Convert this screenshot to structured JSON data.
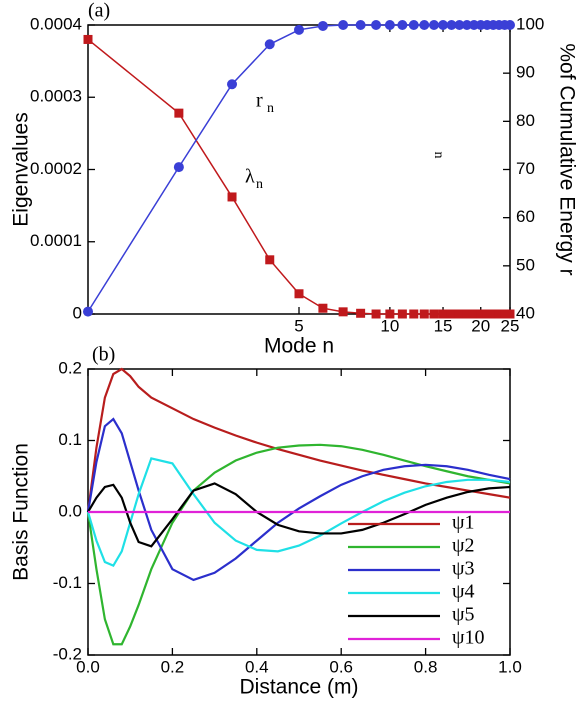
{
  "chart_data": [
    {
      "type": "line",
      "annotations": [
        {
          "text": "(a)"
        },
        {
          "text": "r",
          "sub": "n"
        },
        {
          "text": "λ",
          "sub": "n"
        }
      ],
      "xlabel": "Mode n",
      "ylabel": "Eigenvalues",
      "y2label": "%of Cumulative Energy r",
      "y2label_sub": "n",
      "xlog": true,
      "x": [
        1,
        2,
        3,
        4,
        5,
        6,
        7,
        8,
        9,
        10,
        11,
        12,
        13,
        14,
        15,
        16,
        17,
        18,
        19,
        20,
        21,
        22,
        23,
        24,
        25
      ],
      "xlim": [
        1,
        25
      ],
      "xticks": [
        5,
        10,
        15,
        20,
        25
      ],
      "ylim": [
        0,
        0.0004
      ],
      "yticks": [
        0,
        0.0001,
        0.0002,
        0.0003,
        0.0004
      ],
      "y2lim": [
        40,
        100
      ],
      "y2ticks": [
        40,
        50,
        60,
        70,
        80,
        90,
        100
      ],
      "series": [
        {
          "color": "#c0191c",
          "marker": "square",
          "values": [
            0.00038,
            0.000278,
            0.000162,
            7.5e-05,
            2.8e-05,
            8e-06,
            3e-06,
            1e-06,
            0,
            0,
            0,
            0,
            0,
            0,
            0,
            0,
            0,
            0,
            0,
            0,
            0,
            0,
            0,
            0,
            0
          ]
        },
        {
          "color": "#3a3fd6",
          "marker": "circle",
          "axis": "y2",
          "values": [
            40.5,
            70.5,
            87.7,
            96,
            99,
            99.8,
            100,
            100,
            100,
            100,
            100,
            100,
            100,
            100,
            100,
            100,
            100,
            100,
            100,
            100,
            100,
            100,
            100,
            100,
            100
          ]
        }
      ]
    },
    {
      "type": "line",
      "annotations": [
        {
          "text": "(b)"
        }
      ],
      "xlabel": "Distance (m)",
      "ylabel": "Basis Function",
      "x": [
        0,
        0.02,
        0.04,
        0.06,
        0.08,
        0.1,
        0.12,
        0.15,
        0.2,
        0.25,
        0.3,
        0.35,
        0.4,
        0.45,
        0.5,
        0.55,
        0.6,
        0.65,
        0.7,
        0.75,
        0.8,
        0.85,
        0.9,
        0.95,
        1.0
      ],
      "xlim": [
        0,
        1
      ],
      "xticks": [
        {
          "value": 0,
          "label": "0.0"
        },
        0.2,
        0.4,
        0.6,
        0.8,
        {
          "value": 1,
          "label": "1.0"
        }
      ],
      "ylim": [
        -0.2,
        0.2
      ],
      "yticks": [
        -0.2,
        -0.1,
        {
          "value": 0,
          "label": "0.0"
        },
        0.1,
        0.2
      ],
      "legend": "lower right",
      "series": [
        {
          "name": "ψ1",
          "color": "#b81d1d",
          "values": [
            0,
            0.09,
            0.16,
            0.193,
            0.2,
            0.19,
            0.175,
            0.16,
            0.145,
            0.13,
            0.118,
            0.107,
            0.097,
            0.088,
            0.08,
            0.072,
            0.065,
            0.058,
            0.052,
            0.046,
            0.04,
            0.035,
            0.03,
            0.025,
            0.02
          ]
        },
        {
          "name": "ψ2",
          "color": "#2fb52f",
          "values": [
            0,
            -0.08,
            -0.15,
            -0.185,
            -0.185,
            -0.16,
            -0.13,
            -0.08,
            -0.015,
            0.03,
            0.055,
            0.072,
            0.083,
            0.09,
            0.093,
            0.094,
            0.092,
            0.087,
            0.08,
            0.072,
            0.064,
            0.057,
            0.05,
            0.045,
            0.04
          ]
        },
        {
          "name": "ψ3",
          "color": "#2b2fcc",
          "values": [
            0,
            0.07,
            0.12,
            0.13,
            0.11,
            0.07,
            0.03,
            -0.025,
            -0.08,
            -0.095,
            -0.085,
            -0.065,
            -0.04,
            -0.015,
            0.005,
            0.022,
            0.038,
            0.05,
            0.059,
            0.064,
            0.066,
            0.064,
            0.059,
            0.052,
            0.046
          ]
        },
        {
          "name": "ψ4",
          "color": "#1fe0e6",
          "values": [
            0,
            -0.04,
            -0.07,
            -0.075,
            -0.055,
            -0.015,
            0.025,
            0.075,
            0.068,
            0.025,
            -0.015,
            -0.04,
            -0.053,
            -0.055,
            -0.047,
            -0.033,
            -0.016,
            0,
            0.015,
            0.027,
            0.036,
            0.042,
            0.045,
            0.045,
            0.042
          ]
        },
        {
          "name": "ψ5",
          "color": "#000000",
          "values": [
            0,
            0.02,
            0.035,
            0.038,
            0.02,
            -0.015,
            -0.042,
            -0.048,
            -0.01,
            0.03,
            0.04,
            0.025,
            0,
            -0.018,
            -0.027,
            -0.03,
            -0.03,
            -0.025,
            -0.015,
            -0.003,
            0.01,
            0.02,
            0.028,
            0.033,
            0.035
          ]
        },
        {
          "name": "ψ10",
          "color": "#e022d8",
          "values": [
            0,
            0,
            0,
            0,
            0,
            0,
            0,
            0,
            0,
            0,
            0,
            0,
            0,
            0,
            0,
            0,
            0,
            0,
            0,
            0,
            0,
            0,
            0,
            0,
            0
          ]
        }
      ]
    }
  ]
}
